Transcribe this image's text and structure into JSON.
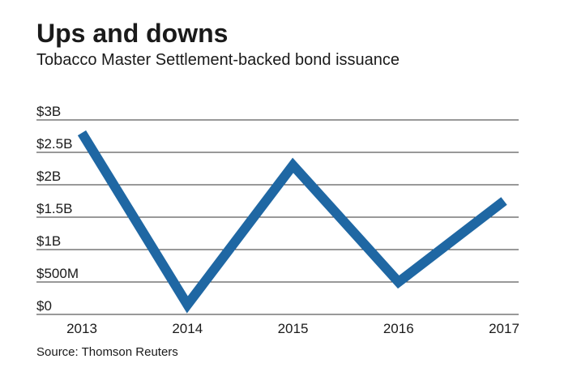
{
  "chart_data": {
    "type": "line",
    "title": "Ups and downs",
    "subtitle": "Tobacco Master Settlement-backed bond issuance",
    "source": "Source: Thomson Reuters",
    "categories": [
      "2013",
      "2014",
      "2015",
      "2016",
      "2017"
    ],
    "values": [
      2.8,
      0.15,
      2.3,
      0.5,
      1.75
    ],
    "color": "#1f67a3",
    "ylim": [
      0,
      3
    ],
    "yticks": [
      {
        "value": 0,
        "label": "$0"
      },
      {
        "value": 0.5,
        "label": "$500M"
      },
      {
        "value": 1,
        "label": "$1B"
      },
      {
        "value": 1.5,
        "label": "$1.5B"
      },
      {
        "value": 2,
        "label": "$2B"
      },
      {
        "value": 2.5,
        "label": "$2.5B"
      },
      {
        "value": 3,
        "label": "$3B"
      }
    ],
    "grid": true
  }
}
